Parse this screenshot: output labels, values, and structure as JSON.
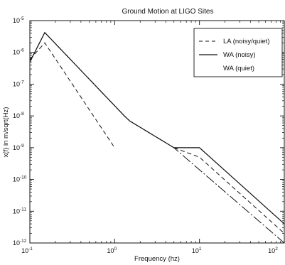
{
  "chart_data": {
    "type": "line",
    "title": "Ground Motion at LIGO Sites",
    "xlabel": "Frequency (hz)",
    "ylabel": "x(f) in m/sqrt(Hz)",
    "xscale": "log",
    "yscale": "log",
    "xlim": [
      0.1,
      100
    ],
    "ylim": [
      1e-12,
      1e-05
    ],
    "grid": false,
    "legend_position": "top-right",
    "xticks": [
      {
        "base": "10",
        "exp": "-1",
        "value": 0.1
      },
      {
        "base": "10",
        "exp": "0",
        "value": 1
      },
      {
        "base": "10",
        "exp": "1",
        "value": 10
      },
      {
        "base": "10",
        "exp": "2",
        "value": 100
      }
    ],
    "yticks": [
      {
        "base": "10",
        "exp": "-12",
        "value": 1e-12
      },
      {
        "base": "10",
        "exp": "-11",
        "value": 1e-11
      },
      {
        "base": "10",
        "exp": "-10",
        "value": 1e-10
      },
      {
        "base": "10",
        "exp": "-9",
        "value": 1e-09
      },
      {
        "base": "10",
        "exp": "-8",
        "value": 1e-08
      },
      {
        "base": "10",
        "exp": "-7",
        "value": 1e-07
      },
      {
        "base": "10",
        "exp": "-6",
        "value": 1e-06
      },
      {
        "base": "10",
        "exp": "-5",
        "value": 1e-05
      }
    ],
    "series": [
      {
        "name": "LA (noisy/quiet)",
        "style": "dashed",
        "segments": [
          [
            [
              0.1,
              6e-07
            ],
            [
              0.15,
              2e-06
            ],
            [
              1.0,
              1e-09
            ]
          ],
          [
            [
              5.0,
              1e-09
            ],
            [
              10.0,
              5e-10
            ],
            [
              100.0,
              2e-12
            ]
          ]
        ]
      },
      {
        "name": "WA (noisy)",
        "style": "solid",
        "segments": [
          [
            [
              0.1,
              5e-07
            ],
            [
              0.15,
              4.2e-06
            ],
            [
              1.3,
              1e-08
            ],
            [
              1.5,
              7e-09
            ],
            [
              5.0,
              1e-09
            ]
          ],
          [
            [
              5.0,
              1e-09
            ],
            [
              10.0,
              1e-09
            ],
            [
              100.0,
              4e-12
            ]
          ]
        ]
      },
      {
        "name": "WA (quiet)",
        "style": "dashdot",
        "segments": [
          [
            [
              0.1,
              5e-07
            ],
            [
              0.15,
              4.2e-06
            ],
            [
              1.3,
              1e-08
            ],
            [
              1.5,
              7e-09
            ],
            [
              5.0,
              1e-09
            ],
            [
              100.0,
              1e-12
            ]
          ]
        ]
      }
    ]
  }
}
